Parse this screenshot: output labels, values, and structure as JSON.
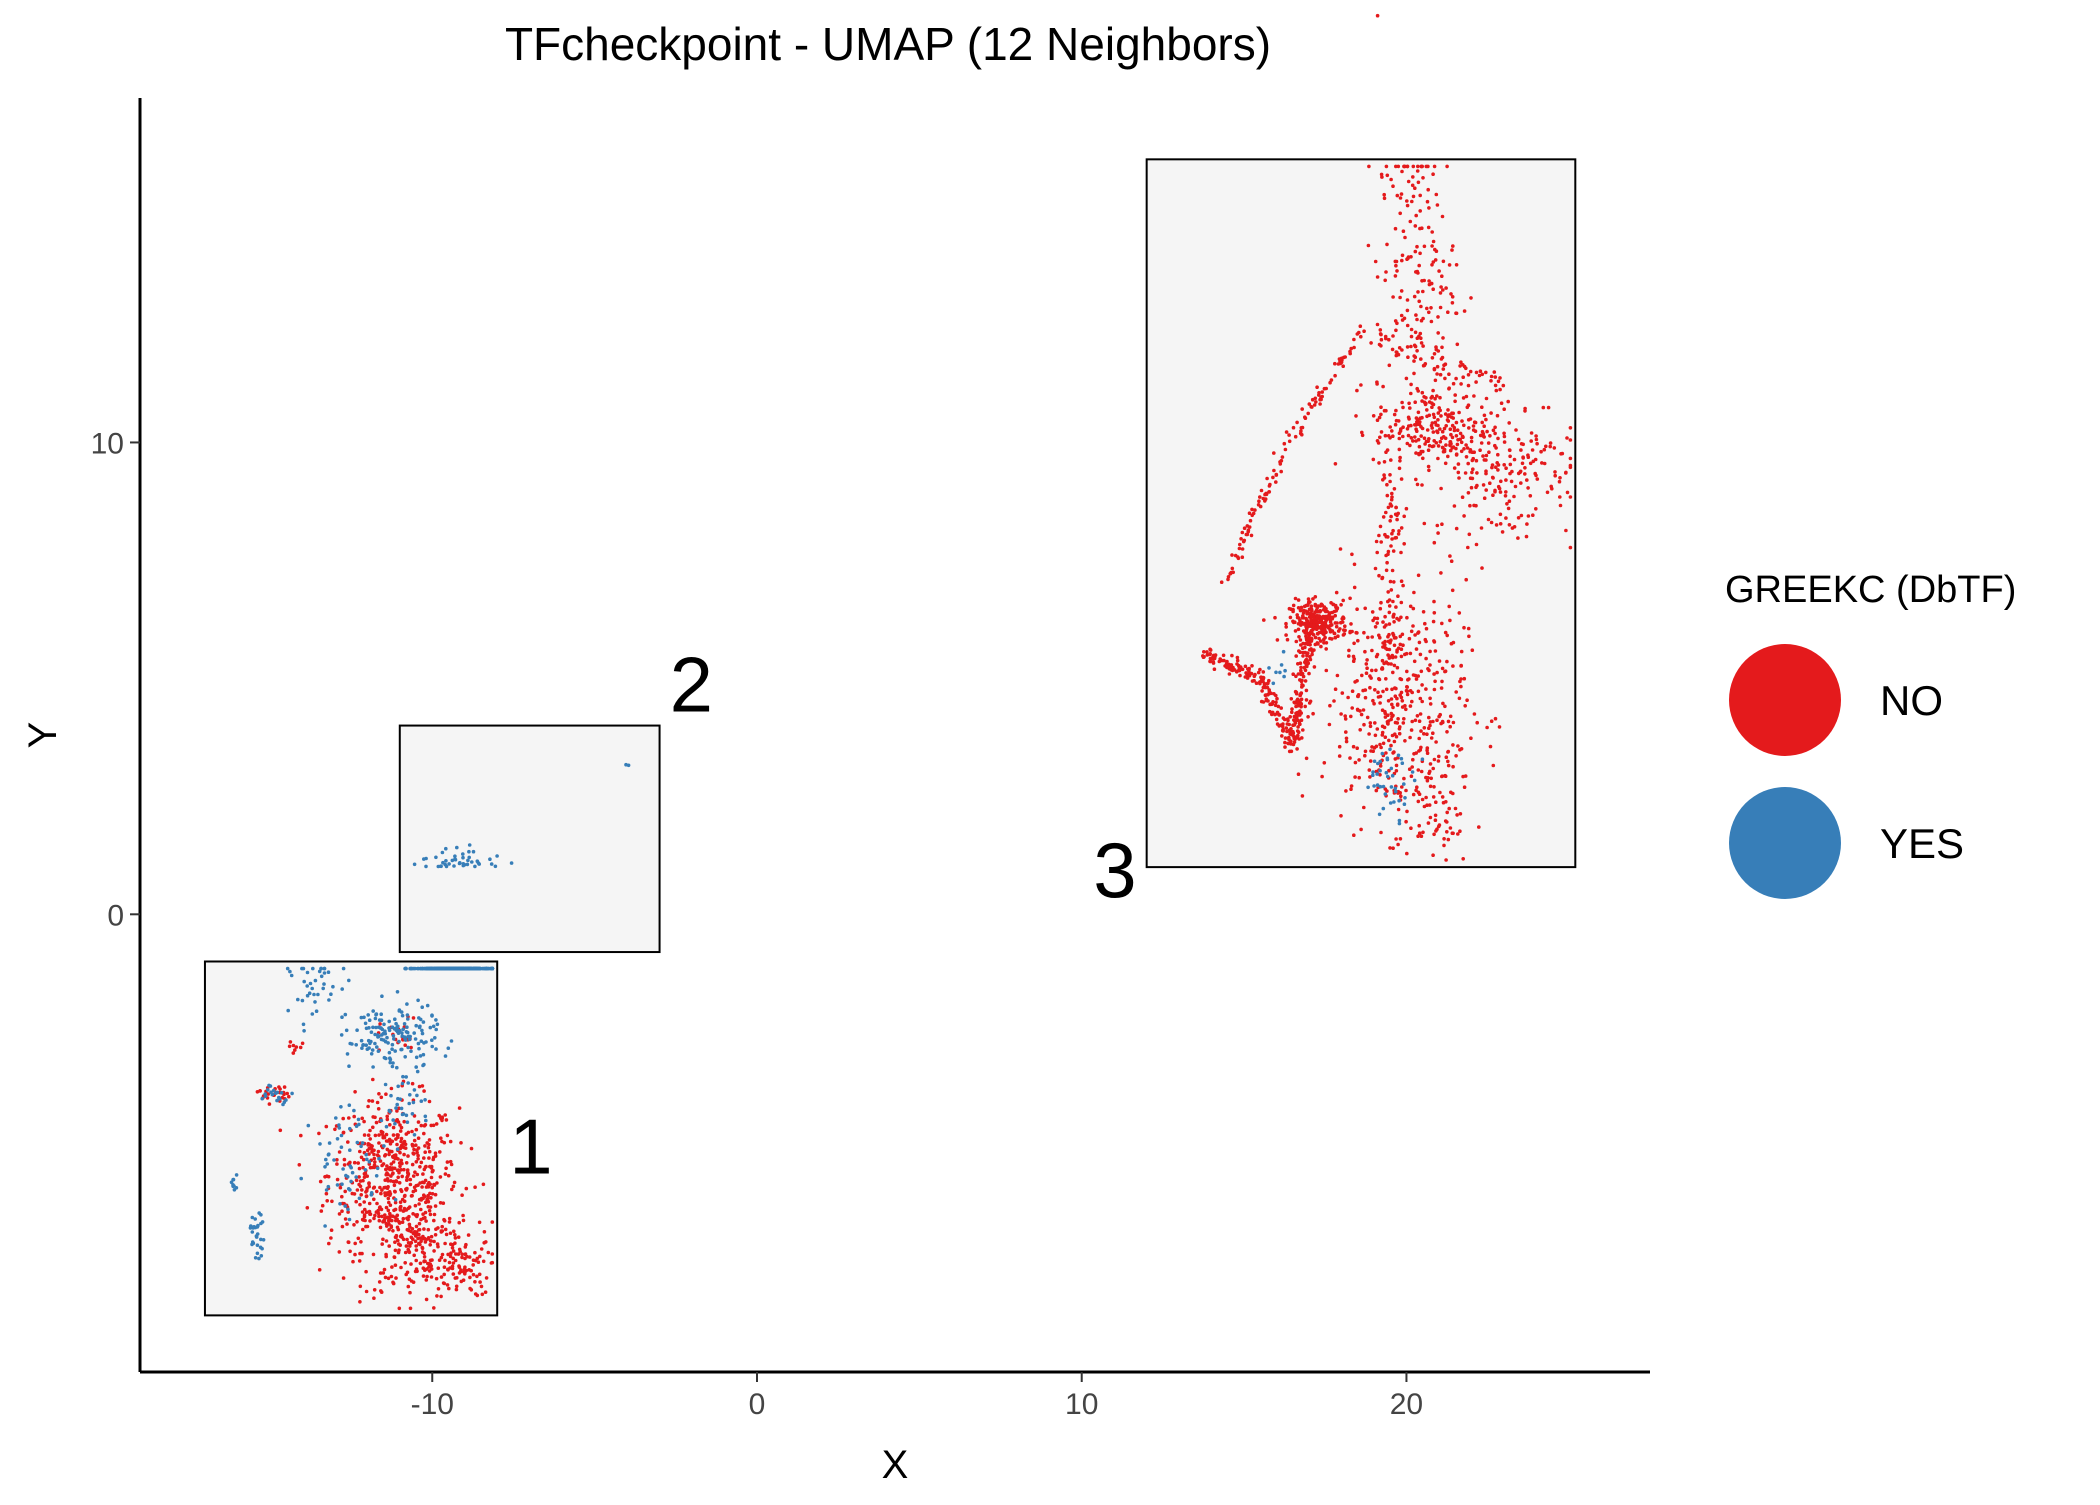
{
  "chart_data": {
    "type": "scatter",
    "title": "TFcheckpoint - UMAP (12 Neighbors)",
    "xlabel": "X",
    "ylabel": "Y",
    "xlim": [
      -19,
      27.5
    ],
    "ylim": [
      -9.7,
      17.3
    ],
    "x_ticks": [
      -10,
      0,
      10,
      20
    ],
    "y_ticks": [
      0,
      10
    ],
    "grid": false,
    "legend": {
      "title": "GREEKC (DbTF)",
      "placement": "right",
      "entries": [
        {
          "label": "NO",
          "color": "#E41A1C"
        },
        {
          "label": "YES",
          "color": "#377EB8"
        }
      ]
    },
    "clusters": [
      {
        "label": "1",
        "xrange": [
          -17.0,
          -8.0
        ],
        "yrange": [
          -8.5,
          -1.0
        ]
      },
      {
        "label": "2",
        "xrange": [
          -11.0,
          -3.0
        ],
        "yrange": [
          -0.8,
          4.0
        ]
      },
      {
        "label": "3",
        "xrange": [
          12.0,
          25.2
        ],
        "yrange": [
          1.0,
          16.0
        ]
      }
    ],
    "series": [
      {
        "name": "NO",
        "color": "#E41A1C",
        "groups": [
          {
            "cx": -11.2,
            "cy": -5.5,
            "sx": 1.0,
            "sy": 0.8,
            "n": 520
          },
          {
            "cx": -10.5,
            "cy": -7.0,
            "sx": 0.9,
            "sy": 0.6,
            "n": 220
          },
          {
            "cx": -9.2,
            "cy": -7.5,
            "sx": 0.5,
            "sy": 0.3,
            "n": 70
          },
          {
            "cx": -14.9,
            "cy": -3.8,
            "sx": 0.25,
            "sy": 0.1,
            "n": 25
          },
          {
            "cx": -11.0,
            "cy": -2.6,
            "sx": 0.3,
            "sy": 0.2,
            "n": 20
          },
          {
            "cx": -14.2,
            "cy": -2.8,
            "sx": 0.15,
            "sy": 0.1,
            "n": 8
          },
          {
            "cx": -9.6,
            "cy": -0.2,
            "sx": 0.2,
            "sy": 0.15,
            "n": 12
          },
          {
            "cx": 17.3,
            "cy": 6.2,
            "sx": 0.45,
            "sy": 0.22,
            "n": 260
          },
          {
            "cx": 19.6,
            "cy": 4.5,
            "sx": 1.1,
            "sy": 1.3,
            "n": 420
          },
          {
            "cx": 20.8,
            "cy": 10.3,
            "sx": 0.9,
            "sy": 0.5,
            "n": 230
          },
          {
            "cx": 23.0,
            "cy": 9.5,
            "sx": 1.1,
            "sy": 0.8,
            "n": 200
          },
          {
            "cx": 20.3,
            "cy": 13.7,
            "sx": 0.6,
            "sy": 1.5,
            "n": 180
          },
          {
            "cx": 19.5,
            "cy": 7.5,
            "sx": 0.2,
            "sy": 1.5,
            "n": 90
          },
          {
            "cx": 20.8,
            "cy": 2.5,
            "sx": 0.6,
            "sy": 0.8,
            "n": 90
          }
        ],
        "paths": [
          {
            "points": [
              [
                13.8,
                5.5
              ],
              [
                15.5,
                5.0
              ],
              [
                16.5,
                3.6
              ],
              [
                16.8,
                5.0
              ],
              [
                17.2,
                6.3
              ]
            ],
            "n": 320,
            "jitter": 0.1
          },
          {
            "points": [
              [
                14.4,
                7.0
              ],
              [
                16.2,
                9.8
              ],
              [
                18.8,
                12.6
              ]
            ],
            "n": 120,
            "jitter": 0.08
          },
          {
            "points": [
              [
                19.0,
                12.2
              ],
              [
                21.0,
                11.8
              ],
              [
                23.0,
                11.2
              ]
            ],
            "n": 60,
            "jitter": 0.15
          }
        ]
      },
      {
        "name": "YES",
        "color": "#377EB8",
        "groups": [
          {
            "cx": -9.3,
            "cy": 0.5,
            "sx": 0.55,
            "sy": 0.35,
            "n": 430
          },
          {
            "cx": -11.2,
            "cy": -2.6,
            "sx": 0.7,
            "sy": 0.35,
            "n": 160
          },
          {
            "cx": -13.6,
            "cy": -1.6,
            "sx": 0.4,
            "sy": 0.4,
            "n": 40
          },
          {
            "cx": -15.4,
            "cy": -6.8,
            "sx": 0.12,
            "sy": 0.22,
            "n": 30
          },
          {
            "cx": -16.1,
            "cy": -5.7,
            "sx": 0.08,
            "sy": 0.1,
            "n": 10
          },
          {
            "cx": -14.8,
            "cy": -3.8,
            "sx": 0.25,
            "sy": 0.1,
            "n": 20
          },
          {
            "cx": -12.5,
            "cy": -5.2,
            "sx": 0.6,
            "sy": 0.6,
            "n": 60
          },
          {
            "cx": -10.8,
            "cy": -4.0,
            "sx": 0.4,
            "sy": 0.3,
            "n": 30
          },
          {
            "cx": -8.0,
            "cy": 0.9,
            "sx": 0.25,
            "sy": 0.1,
            "n": 10
          },
          {
            "cx": -4.0,
            "cy": 3.2,
            "sx": 0.05,
            "sy": 0.05,
            "n": 2
          },
          {
            "cx": 19.5,
            "cy": 2.8,
            "sx": 0.4,
            "sy": 0.35,
            "n": 40
          },
          {
            "cx": 16.2,
            "cy": 5.2,
            "sx": 0.2,
            "sy": 0.2,
            "n": 8
          }
        ],
        "paths": []
      }
    ]
  }
}
